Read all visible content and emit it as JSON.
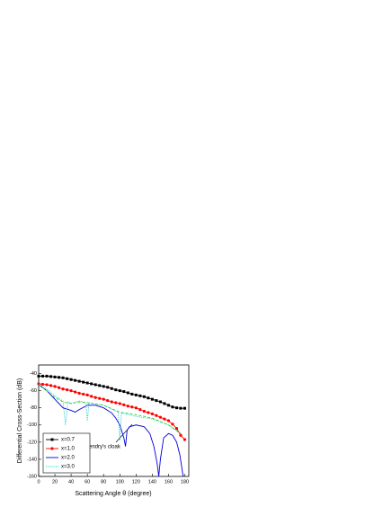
{
  "chart_data": {
    "type": "line",
    "x_label": "Scattering Angle θ (degree)",
    "y_label": "Differential Cross-Section (dB)",
    "annotation": "Pendry's cloak",
    "xlim": [
      0,
      185
    ],
    "ylim": [
      -160,
      -30
    ],
    "xticks": [
      0,
      20,
      40,
      60,
      80,
      100,
      120,
      140,
      160,
      180
    ],
    "yticks": [
      -40,
      -60,
      -80,
      -100,
      -120,
      -140,
      -160
    ],
    "legend": "lower left",
    "series": [
      {
        "name": "x=0.7",
        "color": "#000000",
        "marker": "square",
        "dash": "solid",
        "x": [
          0,
          5,
          10,
          15,
          20,
          25,
          30,
          35,
          40,
          45,
          50,
          55,
          60,
          65,
          70,
          75,
          80,
          85,
          90,
          95,
          100,
          105,
          110,
          115,
          120,
          125,
          130,
          135,
          140,
          145,
          150,
          155,
          160,
          165,
          170,
          175,
          180
        ],
        "values": [
          -43,
          -43,
          -43,
          -43.5,
          -44,
          -44.5,
          -45,
          -46,
          -47,
          -48,
          -49,
          -50,
          -51,
          -52,
          -53,
          -54,
          -55,
          -56,
          -57.5,
          -59,
          -60,
          -61,
          -62.5,
          -64,
          -65,
          -66,
          -67,
          -68.5,
          -70,
          -71.5,
          -73,
          -75,
          -77,
          -79,
          -80,
          -80.5,
          -80.5
        ]
      },
      {
        "name": "x=1.0",
        "color": "#ff0000",
        "marker": "circle",
        "dash": "solid",
        "x": [
          0,
          5,
          10,
          15,
          20,
          25,
          30,
          35,
          40,
          45,
          50,
          55,
          60,
          65,
          70,
          75,
          80,
          85,
          90,
          95,
          100,
          105,
          110,
          115,
          120,
          125,
          130,
          135,
          140,
          145,
          150,
          155,
          160,
          165,
          170,
          175,
          180
        ],
        "values": [
          -52,
          -52.5,
          -53,
          -54,
          -55,
          -56.5,
          -58,
          -59,
          -60,
          -61.5,
          -63,
          -64,
          -65,
          -66.5,
          -68,
          -69,
          -70,
          -71.5,
          -73,
          -74,
          -75,
          -76.5,
          -78,
          -79,
          -80,
          -82,
          -84,
          -85.5,
          -87,
          -89,
          -91,
          -93,
          -95,
          -99,
          -104,
          -112,
          -117
        ]
      },
      {
        "name": "x=2.0",
        "color": "#0000dd",
        "marker": "none",
        "dash": "solid",
        "x": [
          0,
          10,
          20,
          30,
          40,
          45,
          50,
          60,
          70,
          80,
          90,
          95,
          100,
          105,
          107,
          109,
          112,
          120,
          130,
          137,
          142,
          146,
          148,
          150,
          154,
          160,
          165,
          170,
          174,
          178
        ],
        "values": [
          -53,
          -60,
          -70,
          -80,
          -83,
          -85,
          -82,
          -77,
          -77,
          -80,
          -86,
          -92,
          -100,
          -115,
          -125,
          -106,
          -102,
          -100,
          -102,
          -110,
          -125,
          -145,
          -160,
          -140,
          -115,
          -110,
          -112,
          -120,
          -135,
          -160
        ]
      },
      {
        "name": "x=3.0",
        "color": "#00cccc",
        "marker": "none",
        "dash": "dotted",
        "x": [
          0,
          10,
          20,
          30,
          33,
          36,
          40,
          50,
          58,
          60,
          62,
          80,
          98,
          100,
          102,
          120,
          140,
          160,
          175
        ],
        "values": [
          -52,
          -58,
          -66,
          -72,
          -100,
          -73,
          -75,
          -72,
          -74,
          -95,
          -74,
          -77,
          -85,
          -118,
          -86,
          -90,
          -93,
          -100,
          -110
        ]
      },
      {
        "color": "#33cc33",
        "marker": "none",
        "dash": "dashed",
        "x": [
          0,
          10,
          20,
          30,
          40,
          50,
          60,
          80,
          100,
          120,
          140,
          160,
          175
        ],
        "values": [
          -53,
          -60,
          -68,
          -73,
          -75,
          -73,
          -74,
          -77,
          -85,
          -88,
          -92,
          -100,
          -110
        ]
      }
    ]
  }
}
